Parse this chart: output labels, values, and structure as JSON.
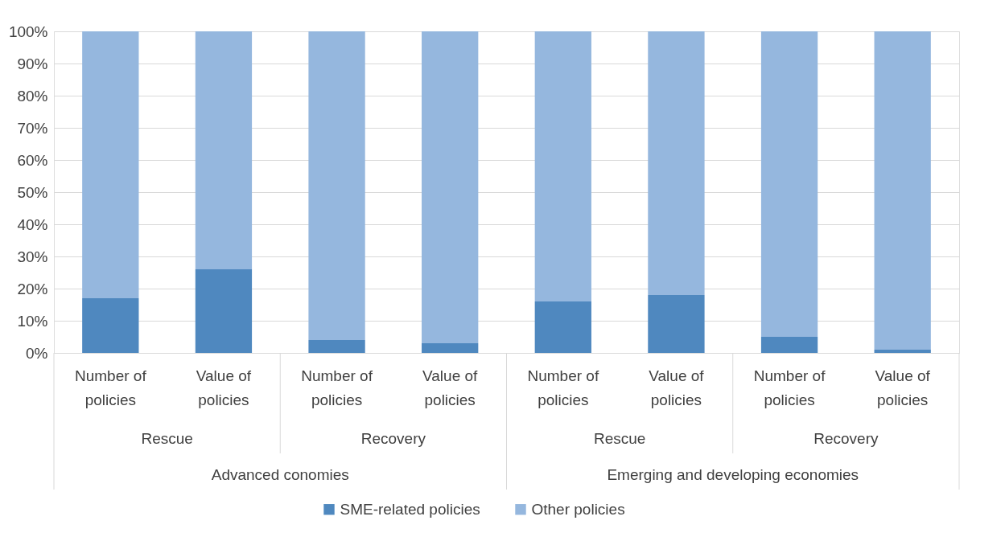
{
  "chart_data": {
    "type": "bar",
    "stacked": true,
    "categories": [
      "Number of policies",
      "Value of policies",
      "Number of policies",
      "Value of policies",
      "Number of policies",
      "Value of policies",
      "Number of policies",
      "Value of policies"
    ],
    "series": [
      {
        "name": "SME-related policies",
        "color": "#4f88bf",
        "values": [
          17,
          26,
          4,
          3,
          16,
          18,
          5,
          1
        ]
      },
      {
        "name": "Other policies",
        "color": "#95b7de",
        "values": [
          83,
          74,
          96,
          97,
          84,
          82,
          95,
          99
        ]
      }
    ],
    "annotations": [
      "Rescue",
      "Recovery",
      "Rescue",
      "Recovery",
      "Advanced conomies",
      "Emerging and developing economies"
    ],
    "ylim": [
      0,
      100
    ],
    "yticks": [
      {
        "value": 0,
        "label": "0%"
      },
      {
        "value": 10,
        "label": "10%"
      },
      {
        "value": 20,
        "label": "20%"
      },
      {
        "value": 30,
        "label": "30%"
      },
      {
        "value": 40,
        "label": "40%"
      },
      {
        "value": 50,
        "label": "50%"
      },
      {
        "value": 60,
        "label": "60%"
      },
      {
        "value": 70,
        "label": "70%"
      },
      {
        "value": 80,
        "label": "80%"
      },
      {
        "value": 90,
        "label": "90%"
      },
      {
        "value": 100,
        "label": "100%"
      }
    ],
    "grid": "y",
    "legend": "bottom"
  }
}
